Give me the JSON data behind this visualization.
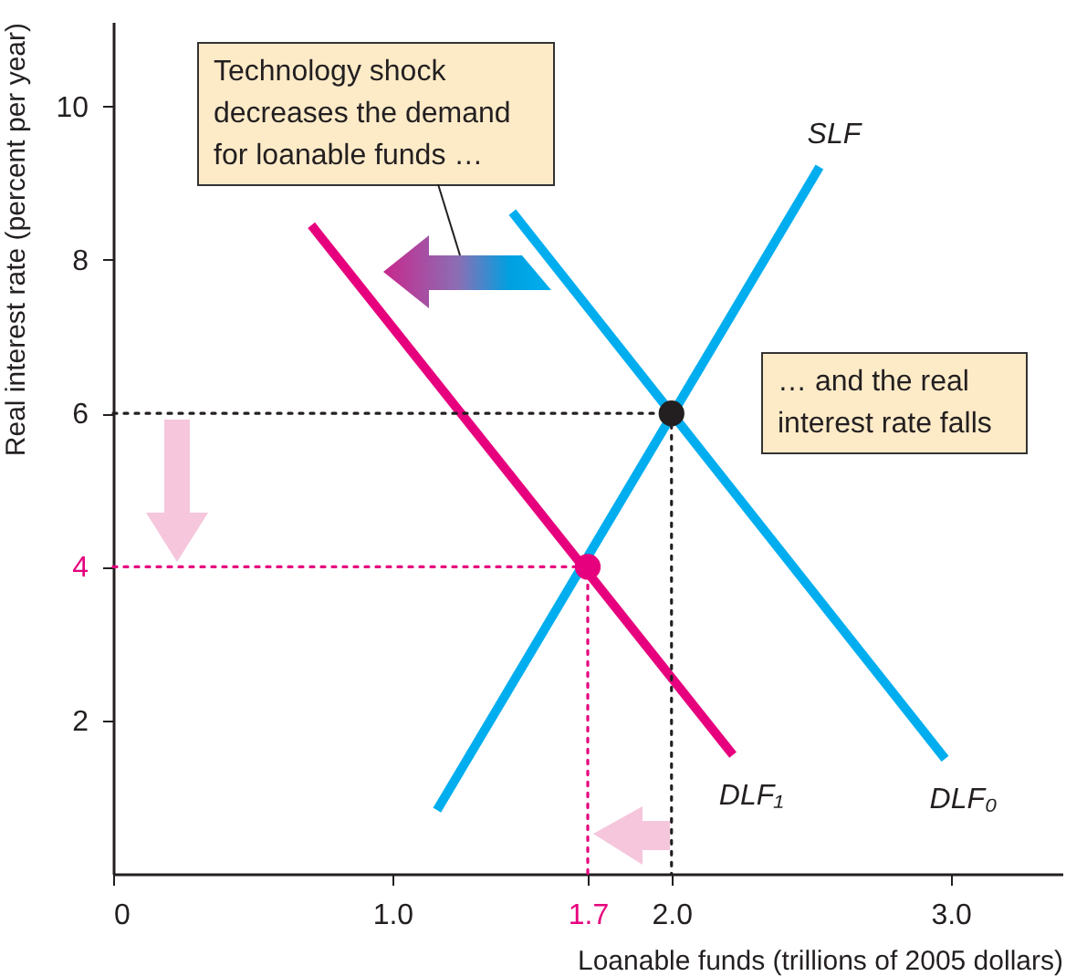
{
  "chart_data": {
    "type": "line",
    "xlabel": "Loanable funds (trillions of 2005 dollars)",
    "ylabel": "Real interest rate (percent per year)",
    "xlim": [
      0,
      3.4
    ],
    "ylim": [
      0,
      11.1
    ],
    "xticks": [
      0,
      {
        "value": 1,
        "label": "1.0"
      },
      1.7,
      {
        "value": 2,
        "label": "2.0"
      },
      {
        "value": 3,
        "label": "3.0"
      }
    ],
    "yticks": [
      2,
      4,
      6,
      8,
      10
    ],
    "grid": false,
    "series": [
      {
        "name": "SLF",
        "color": "#00aeef",
        "x": [
          1.16,
          2.53
        ],
        "values": [
          0.83,
          9.21
        ]
      },
      {
        "name": "DLF₀",
        "color": "#00aeef",
        "x": [
          1.43,
          2.98
        ],
        "values": [
          8.62,
          1.5
        ]
      },
      {
        "name": "DLF₁",
        "color": "#e6007e",
        "x": [
          0.71,
          2.22
        ],
        "values": [
          8.45,
          1.55
        ]
      },
      {
        "color": "#231f20",
        "line_style": "dotted",
        "x": [
          0,
          2,
          2
        ],
        "values": [
          6,
          6,
          0
        ]
      },
      {
        "color": "#e6007e",
        "line_style": "dotted",
        "x": [
          0,
          1.7,
          1.7
        ],
        "values": [
          4,
          4,
          0
        ]
      },
      {
        "type": "scatter",
        "marker": "circle",
        "color": "#231f20",
        "x": [
          2
        ],
        "values": [
          6
        ]
      },
      {
        "type": "scatter",
        "marker": "circle",
        "color": "#e6007e",
        "x": [
          1.7
        ],
        "values": [
          4
        ]
      }
    ],
    "annotations": [
      "Technology shock decreases the demand for loanable funds …",
      "… and the real interest rate falls"
    ]
  }
}
